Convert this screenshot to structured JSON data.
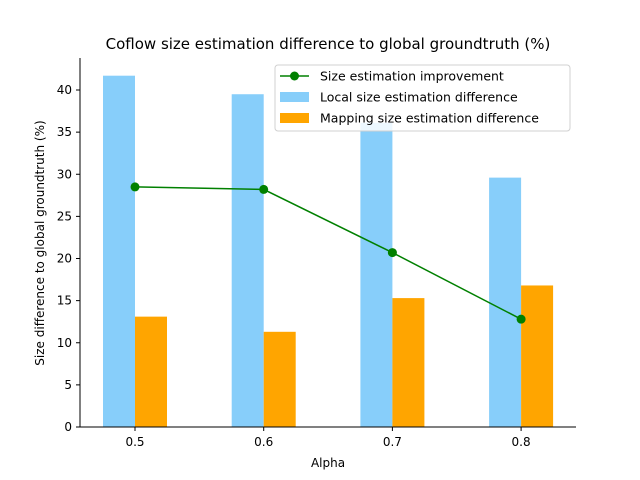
{
  "chart_data": {
    "type": "bar",
    "title": "Coflow size estimation difference to global groundtruth (%)",
    "xlabel": "Alpha",
    "ylabel": "Size difference to global groundtruth (%)",
    "categories": [
      "0.5",
      "0.6",
      "0.7",
      "0.8"
    ],
    "ylim": [
      0,
      43.8
    ],
    "yticks": [
      0,
      5,
      10,
      15,
      20,
      25,
      30,
      35,
      40
    ],
    "grid": false,
    "legend_position": "top-right",
    "series": [
      {
        "name": "Local size estimation difference",
        "type": "bar",
        "color": "#87cefa",
        "values": [
          41.7,
          39.5,
          36.1,
          29.6
        ]
      },
      {
        "name": "Mapping size estimation difference",
        "type": "bar",
        "color": "#ffa500",
        "values": [
          13.1,
          11.3,
          15.3,
          16.8
        ]
      },
      {
        "name": "Size estimation improvement",
        "type": "line",
        "color": "#008000",
        "marker": "circle",
        "values": [
          28.5,
          28.2,
          20.7,
          12.8
        ]
      }
    ]
  }
}
